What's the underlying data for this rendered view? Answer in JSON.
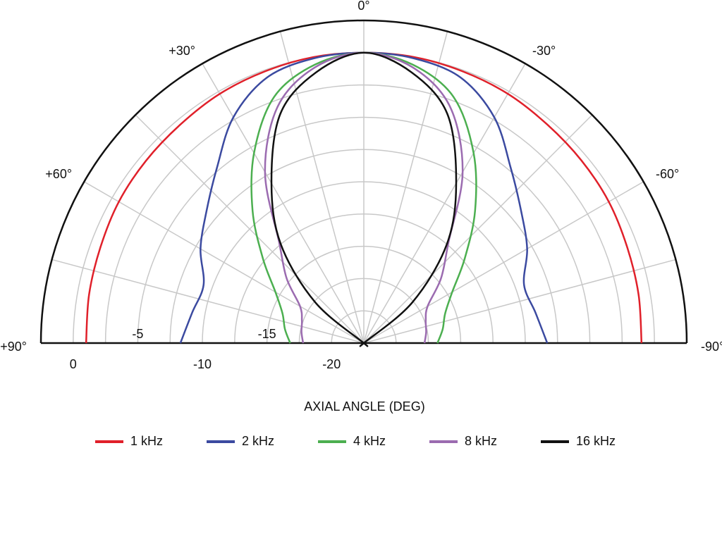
{
  "chart_data": {
    "type": "polar",
    "xlabel": "AXIAL ANGLE (DEG)",
    "theta": [
      90,
      80,
      70,
      60,
      50,
      40,
      30,
      20,
      10,
      0,
      -10,
      -20,
      -30,
      -40,
      -50,
      -60,
      -70,
      -80,
      -90
    ],
    "thetaticks": [
      {
        "value": 90,
        "label": "+90°"
      },
      {
        "value": 60,
        "label": "+60°"
      },
      {
        "value": 30,
        "label": "+30°"
      },
      {
        "value": 0,
        "label": "0°"
      },
      {
        "value": -30,
        "label": "-30°"
      },
      {
        "value": -60,
        "label": "-60°"
      },
      {
        "value": -90,
        "label": "-90°"
      }
    ],
    "thetagrid": [
      90,
      75,
      60,
      45,
      30,
      15,
      0,
      -15,
      -30,
      -45,
      -60,
      -75,
      -90
    ],
    "rlim": [
      -22.5,
      2.5
    ],
    "rticks": [
      -20,
      -15,
      -10,
      -5,
      0
    ],
    "rgrid": [
      -20,
      -17.5,
      -15,
      -12.5,
      -10,
      -7.5,
      -5,
      -2.5,
      0
    ],
    "grid": true,
    "series": [
      {
        "name": "1 kHz",
        "color": "#e0202a",
        "values": [
          -1.0,
          -0.9,
          -0.8,
          -0.6,
          -0.5,
          -0.4,
          -0.2,
          -0.1,
          0,
          0,
          0,
          -0.1,
          -0.2,
          -0.4,
          -0.5,
          -0.6,
          -0.8,
          -0.9,
          -1.0
        ]
      },
      {
        "name": "2 kHz",
        "color": "#3b4aa0",
        "values": [
          -8.3,
          -9.0,
          -9.3,
          -7.9,
          -6.6,
          -4.8,
          -2.3,
          -0.6,
          -0.1,
          0,
          -0.1,
          -0.6,
          -2.3,
          -4.8,
          -6.6,
          -7.9,
          -9.3,
          -9.0,
          -8.3
        ]
      },
      {
        "name": "4 kHz",
        "color": "#4caf50",
        "values": [
          -16.8,
          -16.3,
          -15.8,
          -14.6,
          -12.3,
          -9.1,
          -5.5,
          -2.2,
          -0.6,
          0,
          -0.6,
          -2.2,
          -5.5,
          -9.1,
          -12.3,
          -14.6,
          -15.8,
          -16.3,
          -16.8
        ]
      },
      {
        "name": "8 kHz",
        "color": "#9b6bb0",
        "values": [
          -17.8,
          -17.6,
          -17.4,
          -16.8,
          -14.7,
          -12.3,
          -7.2,
          -3.0,
          -0.8,
          0,
          -0.8,
          -3.0,
          -7.2,
          -12.3,
          -14.7,
          -16.8,
          -17.4,
          -17.6,
          -17.8
        ]
      },
      {
        "name": "16 kHz",
        "color": "#111111",
        "values": [
          -22.5,
          -22.5,
          -22.5,
          -22.5,
          -17.6,
          -12.5,
          -8.2,
          -3.6,
          -1.2,
          0,
          -1.2,
          -3.6,
          -8.2,
          -12.5,
          -17.6,
          -22.5,
          -22.5,
          -22.5,
          -22.5
        ]
      }
    ]
  }
}
